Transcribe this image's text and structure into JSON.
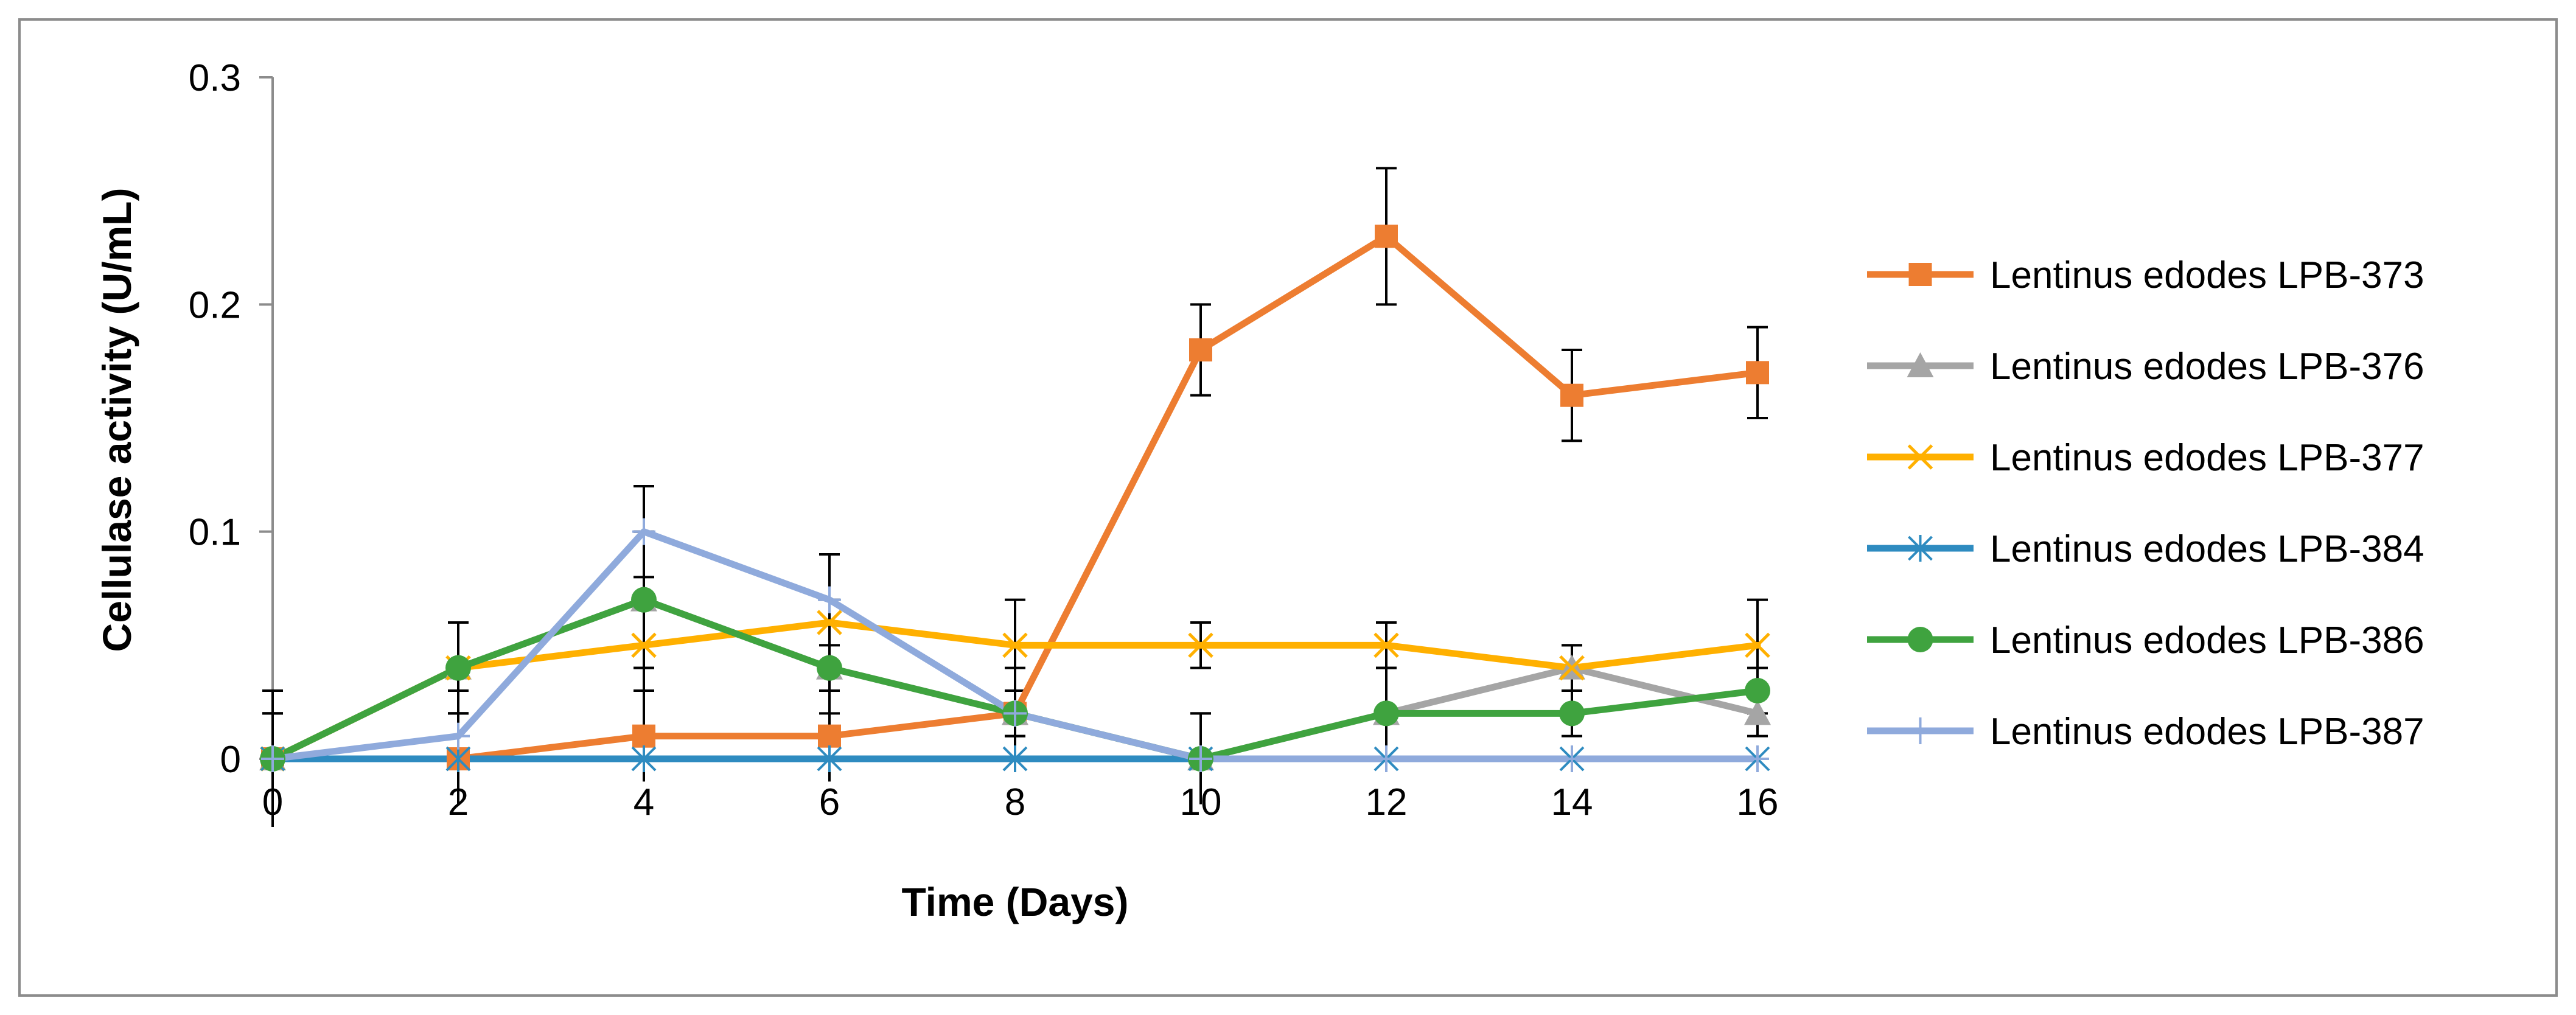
{
  "chart_data": {
    "type": "line",
    "title": "",
    "xlabel": "Time (Days)",
    "ylabel": "Cellulase activity (U/mL)",
    "x": [
      0,
      2,
      4,
      6,
      8,
      10,
      12,
      14,
      16
    ],
    "xlim": [
      0,
      16
    ],
    "ylim": [
      0,
      0.3
    ],
    "x_ticks": [
      "0",
      "2",
      "4",
      "6",
      "8",
      "10",
      "12",
      "14",
      "16"
    ],
    "y_ticks": [
      {
        "value": 0,
        "label": "0"
      },
      {
        "value": 0.1,
        "label": "0.1"
      },
      {
        "value": 0.2,
        "label": "0.2"
      },
      {
        "value": 0.3,
        "label": "0.3"
      }
    ],
    "grid": false,
    "legend_position": "right",
    "series": [
      {
        "name": "Lentinus edodes LPB-373",
        "color": "#ED7D31",
        "marker": "square",
        "values": [
          0,
          0,
          0.01,
          0.01,
          0.02,
          0.18,
          0.23,
          0.16,
          0.17
        ],
        "errors": [
          0.03,
          0.02,
          0.02,
          0.02,
          0.01,
          0.02,
          0.03,
          0.02,
          0.02
        ]
      },
      {
        "name": "Lentinus edodes LPB-376",
        "color": "#A5A5A5",
        "marker": "triangle",
        "values": [
          0,
          0.04,
          0.07,
          0.04,
          0.02,
          0,
          0.02,
          0.04,
          0.02
        ],
        "errors": [
          0.02,
          0.02,
          0.03,
          0.03,
          0.02,
          0.02,
          0.02,
          0.01,
          0.01
        ]
      },
      {
        "name": "Lentinus edodes LPB-377",
        "color": "#FFB000",
        "marker": "x",
        "values": [
          0,
          0.04,
          0.05,
          0.06,
          0.05,
          0.05,
          0.05,
          0.04,
          0.05
        ],
        "errors": [
          0.02,
          0.02,
          0.02,
          0.03,
          0.02,
          0.01,
          0.01,
          0.01,
          0.02
        ]
      },
      {
        "name": "Lentinus edodes LPB-384",
        "color": "#2E8BC0",
        "marker": "asterisk",
        "values": [
          0,
          0,
          0,
          0,
          0,
          0,
          0,
          0,
          0
        ],
        "errors": [
          0,
          0,
          0,
          0,
          0,
          0,
          0,
          0,
          0
        ]
      },
      {
        "name": "Lentinus edodes LPB-386",
        "color": "#3FA33F",
        "marker": "circle",
        "values": [
          0,
          0.04,
          0.07,
          0.04,
          0.02,
          0,
          0.02,
          0.02,
          0.03
        ],
        "errors": [
          0.02,
          0.02,
          0.03,
          0.02,
          0.01,
          0.02,
          0.02,
          0.01,
          0.01
        ]
      },
      {
        "name": "Lentinus edodes LPB-387",
        "color": "#8FAADC",
        "marker": "plus",
        "values": [
          0,
          0.01,
          0.1,
          0.07,
          0.02,
          0,
          0,
          0,
          0
        ],
        "errors": [
          0.02,
          0.02,
          0.02,
          0.02,
          0.01,
          0,
          0,
          0,
          0
        ]
      }
    ]
  }
}
